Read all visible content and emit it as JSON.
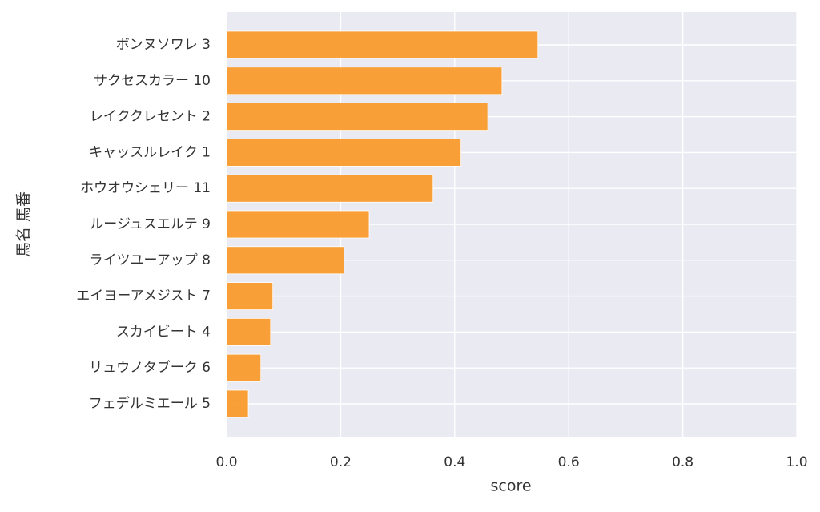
{
  "chart_data": {
    "type": "barh",
    "xlabel": "score",
    "ylabel": "馬名 馬番",
    "categories": [
      "ボンヌソワレ 3",
      "サクセスカラー 10",
      "レイククレセント 2",
      "キャッスルレイク 1",
      "ホウオウシェリー 11",
      "ルージュスエルテ 9",
      "ライツユーアップ 8",
      "エイヨーアメジスト 7",
      "スカイビート 4",
      "リュウノタブーク 6",
      "フェデルミエール 5"
    ],
    "values": [
      0.546,
      0.483,
      0.458,
      0.411,
      0.362,
      0.25,
      0.206,
      0.081,
      0.077,
      0.06,
      0.038
    ],
    "color": "#f99b2c",
    "xlim": [
      0,
      1
    ],
    "xticks": [
      {
        "value": 0,
        "label": "0.0"
      },
      0.2,
      0.4,
      0.6,
      0.8,
      {
        "value": 1,
        "label": "1.0"
      }
    ],
    "grid": true
  }
}
